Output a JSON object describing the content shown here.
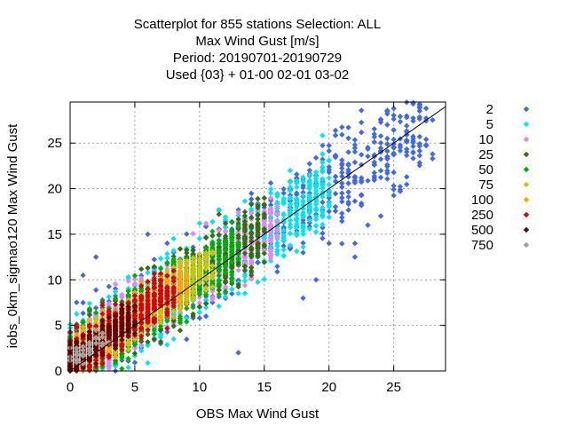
{
  "chart_data": {
    "type": "scatter",
    "title_lines": [
      "Scatterplot for  855 stations Selection: ALL",
      "Max Wind Gust [m/s]",
      "Period: 20190701-20190729",
      "Used {03} + 01-00 02-01 03-02"
    ],
    "xlabel": "OBS Max Wind Gust",
    "ylabel": "iobs_0km_sigmao120 Max Wind Gust",
    "xlim": [
      0,
      29
    ],
    "ylim": [
      0,
      29.5
    ],
    "xticks": [
      0,
      5,
      10,
      15,
      20,
      25
    ],
    "yticks": [
      0,
      5,
      10,
      15,
      20,
      25
    ],
    "grid": true,
    "diagonal_line": true,
    "legend_position": "right",
    "series": [
      {
        "name": "2",
        "color": "#4169e1",
        "x_range": [
          0,
          28
        ],
        "y_spread": 4.5,
        "count": 700,
        "outliers": [
          [
            25,
            28.8
          ],
          [
            26.5,
            29.3
          ],
          [
            28,
            23.8
          ],
          [
            26,
            25.2
          ],
          [
            25,
            25.4
          ],
          [
            24,
            24
          ],
          [
            24,
            17
          ],
          [
            22,
            14
          ],
          [
            20,
            14
          ],
          [
            22,
            12.5
          ],
          [
            19,
            10
          ],
          [
            18,
            8
          ],
          [
            13,
            2
          ],
          [
            6,
            15
          ],
          [
            1,
            10.5
          ],
          [
            2,
            12.5
          ],
          [
            23,
            16
          ],
          [
            21,
            19
          ]
        ]
      },
      {
        "name": "5",
        "color": "#00e5ee",
        "x_range": [
          0,
          20
        ],
        "y_spread": 3.8,
        "count": 900,
        "outliers": []
      },
      {
        "name": "10",
        "color": "#ee82ee",
        "x_range": [
          0,
          16
        ],
        "y_spread": 3.2,
        "count": 700,
        "outliers": []
      },
      {
        "name": "25",
        "color": "#3a6b10",
        "x_range": [
          0,
          15
        ],
        "y_spread": 3.2,
        "count": 700,
        "outliers": []
      },
      {
        "name": "50",
        "color": "#00b000",
        "x_range": [
          0,
          13
        ],
        "y_spread": 3.0,
        "count": 600,
        "outliers": []
      },
      {
        "name": "75",
        "color": "#c8c800",
        "x_range": [
          0,
          11
        ],
        "y_spread": 2.5,
        "count": 500,
        "outliers": []
      },
      {
        "name": "100",
        "color": "#ffa500",
        "x_range": [
          0,
          9
        ],
        "y_spread": 2.2,
        "count": 400,
        "outliers": []
      },
      {
        "name": "250",
        "color": "#dd0000",
        "x_range": [
          0,
          8
        ],
        "y_spread": 2.2,
        "count": 450,
        "outliers": []
      },
      {
        "name": "500",
        "color": "#6b0000",
        "x_range": [
          0,
          5
        ],
        "y_spread": 1.8,
        "count": 300,
        "outliers": []
      },
      {
        "name": "750",
        "color": "#a0a0a0",
        "x_range": [
          0,
          3
        ],
        "y_spread": 1.2,
        "count": 40,
        "outliers": []
      }
    ]
  }
}
